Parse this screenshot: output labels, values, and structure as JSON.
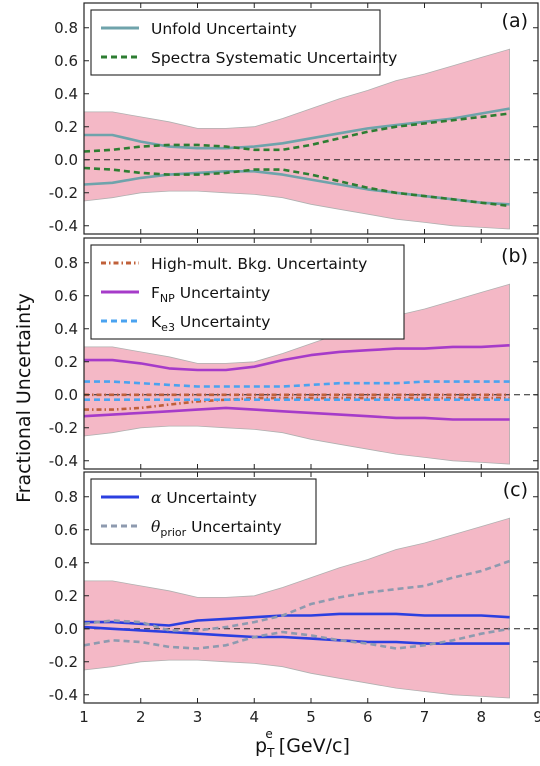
{
  "chart_data": [
    {
      "type": "line",
      "panel_label": "(a)",
      "xlim": [
        1,
        9
      ],
      "ylim": [
        -0.45,
        0.95
      ],
      "yticks": [
        "-0.4",
        "-0.2",
        "0.0",
        "0.2",
        "0.4",
        "0.6",
        "0.8"
      ],
      "band": {
        "color": "#f4b8c6",
        "x": [
          1,
          1.5,
          2,
          2.5,
          3,
          3.5,
          4,
          4.5,
          5,
          5.5,
          6,
          6.5,
          7,
          7.5,
          8,
          8.5
        ],
        "upper": [
          0.29,
          0.29,
          0.26,
          0.23,
          0.19,
          0.19,
          0.2,
          0.25,
          0.31,
          0.37,
          0.42,
          0.48,
          0.52,
          0.57,
          0.62,
          0.67
        ],
        "lower": [
          -0.25,
          -0.23,
          -0.2,
          -0.19,
          -0.19,
          -0.2,
          -0.21,
          -0.23,
          -0.27,
          -0.3,
          -0.33,
          -0.36,
          -0.38,
          -0.4,
          -0.41,
          -0.42
        ]
      },
      "series": [
        {
          "name": "Unfold Uncertainty",
          "color": "#6fa3ab",
          "dash": "solid",
          "x": [
            1,
            1.5,
            2,
            2.5,
            3,
            3.5,
            4,
            4.5,
            5,
            5.5,
            6,
            6.5,
            7,
            7.5,
            8,
            8.5
          ],
          "upper": [
            0.15,
            0.15,
            0.11,
            0.08,
            0.07,
            0.07,
            0.08,
            0.1,
            0.13,
            0.16,
            0.19,
            0.21,
            0.23,
            0.25,
            0.28,
            0.31
          ],
          "lower": [
            -0.15,
            -0.14,
            -0.11,
            -0.09,
            -0.08,
            -0.07,
            -0.07,
            -0.09,
            -0.12,
            -0.15,
            -0.18,
            -0.2,
            -0.22,
            -0.24,
            -0.26,
            -0.27
          ]
        },
        {
          "name": "Spectra Systematic Uncertainty",
          "color": "#2e7d32",
          "dash": "dashed",
          "x": [
            1,
            1.5,
            2,
            2.5,
            3,
            3.5,
            4,
            4.5,
            5,
            5.5,
            6,
            6.5,
            7,
            7.5,
            8,
            8.5
          ],
          "upper": [
            0.05,
            0.06,
            0.08,
            0.09,
            0.09,
            0.08,
            0.06,
            0.06,
            0.09,
            0.13,
            0.17,
            0.2,
            0.22,
            0.24,
            0.26,
            0.28
          ],
          "lower": [
            -0.05,
            -0.06,
            -0.08,
            -0.09,
            -0.09,
            -0.08,
            -0.06,
            -0.06,
            -0.09,
            -0.13,
            -0.17,
            -0.2,
            -0.22,
            -0.24,
            -0.26,
            -0.28
          ]
        }
      ]
    },
    {
      "type": "line",
      "panel_label": "(b)",
      "xlim": [
        1,
        9
      ],
      "ylim": [
        -0.45,
        0.95
      ],
      "yticks": [
        "-0.4",
        "-0.2",
        "0.0",
        "0.2",
        "0.4",
        "0.6",
        "0.8"
      ],
      "band": {
        "color": "#f4b8c6",
        "x": [
          1,
          1.5,
          2,
          2.5,
          3,
          3.5,
          4,
          4.5,
          5,
          5.5,
          6,
          6.5,
          7,
          7.5,
          8,
          8.5
        ],
        "upper": [
          0.29,
          0.29,
          0.26,
          0.23,
          0.19,
          0.19,
          0.2,
          0.25,
          0.31,
          0.37,
          0.42,
          0.48,
          0.52,
          0.57,
          0.62,
          0.67
        ],
        "lower": [
          -0.25,
          -0.23,
          -0.2,
          -0.19,
          -0.19,
          -0.2,
          -0.21,
          -0.23,
          -0.27,
          -0.3,
          -0.33,
          -0.36,
          -0.38,
          -0.4,
          -0.41,
          -0.42
        ]
      },
      "series": [
        {
          "name": "High-mult. Bkg. Uncertainty",
          "color": "#c0603a",
          "dash": "dashdot",
          "x": [
            1,
            1.5,
            2,
            2.5,
            3,
            3.5,
            4,
            4.5,
            5,
            5.5,
            6,
            6.5,
            7,
            7.5,
            8,
            8.5
          ],
          "upper": [
            0.0,
            0.0,
            0.0,
            0.0,
            0.0,
            0.0,
            0.0,
            0.0,
            0.0,
            0.0,
            0.0,
            0.0,
            0.0,
            0.0,
            0.0,
            0.0
          ],
          "lower": [
            -0.09,
            -0.09,
            -0.08,
            -0.06,
            -0.04,
            -0.03,
            -0.02,
            -0.02,
            -0.02,
            -0.02,
            -0.02,
            -0.02,
            -0.02,
            -0.02,
            -0.02,
            -0.02
          ]
        },
        {
          "name": "F",
          "subscript": "NP",
          "name_suffix": " Uncertainty",
          "color": "#a63bc9",
          "dash": "solid",
          "x": [
            1,
            1.5,
            2,
            2.5,
            3,
            3.5,
            4,
            4.5,
            5,
            5.5,
            6,
            6.5,
            7,
            7.5,
            8,
            8.5
          ],
          "upper": [
            0.21,
            0.21,
            0.19,
            0.16,
            0.15,
            0.15,
            0.17,
            0.21,
            0.24,
            0.26,
            0.27,
            0.28,
            0.28,
            0.29,
            0.29,
            0.3
          ],
          "lower": [
            -0.13,
            -0.12,
            -0.11,
            -0.1,
            -0.09,
            -0.08,
            -0.09,
            -0.1,
            -0.11,
            -0.12,
            -0.13,
            -0.14,
            -0.14,
            -0.15,
            -0.15,
            -0.15
          ]
        },
        {
          "name": "K",
          "subscript": "e3",
          "name_suffix": " Uncertainty",
          "color": "#4aa3f0",
          "dash": "dashed",
          "x": [
            1,
            1.5,
            2,
            2.5,
            3,
            3.5,
            4,
            4.5,
            5,
            5.5,
            6,
            6.5,
            7,
            7.5,
            8,
            8.5
          ],
          "upper": [
            0.08,
            0.08,
            0.07,
            0.06,
            0.05,
            0.05,
            0.05,
            0.05,
            0.06,
            0.07,
            0.07,
            0.07,
            0.08,
            0.08,
            0.08,
            0.08
          ],
          "lower": [
            -0.03,
            -0.03,
            -0.03,
            -0.03,
            -0.03,
            -0.03,
            -0.03,
            -0.03,
            -0.03,
            -0.03,
            -0.03,
            -0.03,
            -0.03,
            -0.03,
            -0.03,
            -0.03
          ]
        }
      ]
    },
    {
      "type": "line",
      "panel_label": "(c)",
      "xlim": [
        1,
        9
      ],
      "ylim": [
        -0.45,
        0.95
      ],
      "yticks": [
        "-0.4",
        "-0.2",
        "0.0",
        "0.2",
        "0.4",
        "0.6",
        "0.8"
      ],
      "xticks": [
        "1",
        "2",
        "3",
        "4",
        "5",
        "6",
        "7",
        "8",
        "9"
      ],
      "band": {
        "color": "#f4b8c6",
        "x": [
          1,
          1.5,
          2,
          2.5,
          3,
          3.5,
          4,
          4.5,
          5,
          5.5,
          6,
          6.5,
          7,
          7.5,
          8,
          8.5
        ],
        "upper": [
          0.29,
          0.29,
          0.26,
          0.23,
          0.19,
          0.19,
          0.2,
          0.25,
          0.31,
          0.37,
          0.42,
          0.48,
          0.52,
          0.57,
          0.62,
          0.67
        ],
        "lower": [
          -0.25,
          -0.23,
          -0.2,
          -0.19,
          -0.19,
          -0.2,
          -0.21,
          -0.23,
          -0.27,
          -0.3,
          -0.33,
          -0.36,
          -0.38,
          -0.4,
          -0.41,
          -0.42
        ]
      },
      "series": [
        {
          "name": "α",
          "name_suffix": " Uncertainty",
          "italic": true,
          "color": "#2b3fe0",
          "dash": "solid",
          "x": [
            1,
            1.5,
            2,
            2.5,
            3,
            3.5,
            4,
            4.5,
            5,
            5.5,
            6,
            6.5,
            7,
            7.5,
            8,
            8.5
          ],
          "upper": [
            0.04,
            0.04,
            0.03,
            0.02,
            0.05,
            0.06,
            0.07,
            0.08,
            0.08,
            0.09,
            0.09,
            0.09,
            0.08,
            0.08,
            0.08,
            0.07
          ],
          "lower": [
            0.01,
            0.0,
            -0.01,
            -0.02,
            -0.03,
            -0.04,
            -0.05,
            -0.05,
            -0.06,
            -0.07,
            -0.08,
            -0.08,
            -0.09,
            -0.09,
            -0.09,
            -0.09
          ]
        },
        {
          "name": "θ",
          "subscript": "prior",
          "name_suffix": " Uncertainty",
          "italic": true,
          "color": "#8e9aaf",
          "dash": "dashed",
          "x": [
            1,
            1.5,
            2,
            2.5,
            3,
            3.5,
            4,
            4.5,
            5,
            5.5,
            6,
            6.5,
            7,
            7.5,
            8,
            8.5
          ],
          "upper": [
            0.03,
            0.05,
            0.04,
            -0.01,
            -0.01,
            0.01,
            0.04,
            0.08,
            0.15,
            0.19,
            0.22,
            0.24,
            0.26,
            0.31,
            0.35,
            0.41
          ],
          "lower": [
            -0.1,
            -0.07,
            -0.08,
            -0.11,
            -0.12,
            -0.1,
            -0.05,
            -0.02,
            -0.04,
            -0.07,
            -0.09,
            -0.12,
            -0.1,
            -0.07,
            -0.03,
            0.0
          ]
        }
      ]
    }
  ],
  "axes": {
    "ylabel": "Fractional Uncertainty",
    "xlabel_main": "p",
    "xlabel_sub": "T",
    "xlabel_sup": "e",
    "xlabel_unit": "  [GeV/c]"
  }
}
